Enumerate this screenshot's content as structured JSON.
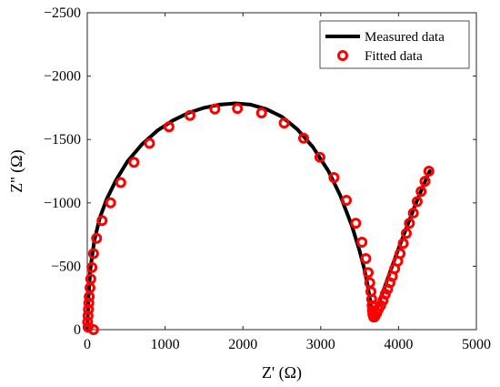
{
  "chart_data": {
    "type": "line",
    "title": "",
    "xlabel": "Z' (Ω)",
    "ylabel": "Z'' (Ω)",
    "xlim": [
      0,
      5000
    ],
    "ylim": [
      -2500,
      0
    ],
    "y_axis_inverted": true,
    "xticks": [
      0,
      1000,
      2000,
      3000,
      4000,
      5000
    ],
    "xtick_labels": [
      "0",
      "1000",
      "2000",
      "3000",
      "4000",
      "5000"
    ],
    "yticks": [
      0,
      -500,
      -1000,
      -1500,
      -2000,
      -2500
    ],
    "ytick_labels": [
      "0",
      "−500",
      "−1000",
      "−1500",
      "−2000",
      "−2500"
    ],
    "grid": false,
    "legend_position": "top-right",
    "series": [
      {
        "name": "Measured data",
        "style": "line",
        "color": "#000000",
        "x": [
          0,
          15,
          40,
          90,
          160,
          250,
          370,
          520,
          700,
          900,
          1100,
          1300,
          1500,
          1700,
          1900,
          2100,
          2300,
          2500,
          2700,
          2900,
          3100,
          3250,
          3400,
          3500,
          3560,
          3600,
          3630,
          3650,
          3660,
          3680,
          3720,
          3800,
          3900,
          4000,
          4100,
          4200,
          4300,
          4400
        ],
        "y": [
          0,
          -250,
          -480,
          -700,
          -880,
          -1030,
          -1180,
          -1330,
          -1460,
          -1570,
          -1650,
          -1710,
          -1750,
          -1775,
          -1785,
          -1775,
          -1740,
          -1680,
          -1580,
          -1440,
          -1250,
          -1060,
          -820,
          -620,
          -480,
          -360,
          -250,
          -160,
          -110,
          -110,
          -170,
          -300,
          -470,
          -640,
          -800,
          -960,
          -1110,
          -1250
        ]
      },
      {
        "name": "Fitted data",
        "style": "marker",
        "color": "#ff0000",
        "x": [
          80,
          10,
          5,
          10,
          15,
          20,
          25,
          35,
          45,
          60,
          80,
          120,
          190,
          300,
          430,
          600,
          800,
          1050,
          1320,
          1640,
          1930,
          2240,
          2530,
          2780,
          2990,
          3170,
          3330,
          3450,
          3530,
          3580,
          3610,
          3630,
          3645,
          3655,
          3660,
          3665,
          3670,
          3680,
          3690,
          3700,
          3720,
          3740,
          3770,
          3800,
          3830,
          3860,
          3890,
          3920,
          3950,
          3990,
          4020,
          4060,
          4100,
          4140,
          4190,
          4240,
          4290,
          4340,
          4390
        ],
        "y": [
          0,
          -20,
          -60,
          -110,
          -160,
          -210,
          -260,
          -330,
          -400,
          -490,
          -600,
          -720,
          -860,
          -1000,
          -1160,
          -1320,
          -1470,
          -1600,
          -1690,
          -1740,
          -1745,
          -1710,
          -1630,
          -1510,
          -1360,
          -1200,
          -1020,
          -840,
          -690,
          -560,
          -450,
          -370,
          -300,
          -240,
          -190,
          -150,
          -120,
          -100,
          -100,
          -110,
          -130,
          -160,
          -190,
          -230,
          -280,
          -320,
          -370,
          -420,
          -480,
          -540,
          -600,
          -680,
          -760,
          -840,
          -920,
          -1010,
          -1090,
          -1170,
          -1250
        ]
      }
    ]
  }
}
